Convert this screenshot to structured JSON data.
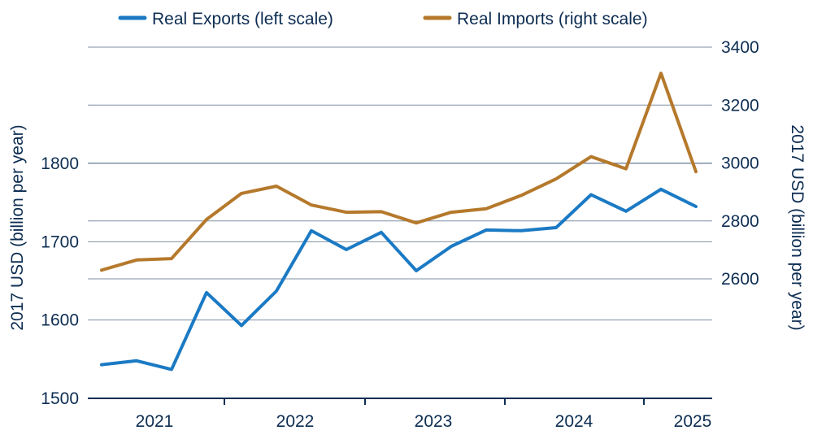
{
  "chart_data": {
    "type": "line",
    "title": "",
    "x": [
      "2020-Q4",
      "2021-Q1",
      "2021-Q2",
      "2021-Q3",
      "2021-Q4",
      "2022-Q1",
      "2022-Q2",
      "2022-Q3",
      "2022-Q4",
      "2023-Q1",
      "2023-Q2",
      "2023-Q3",
      "2023-Q4",
      "2024-Q1",
      "2024-Q2",
      "2024-Q3",
      "2024-Q4",
      "2025-Q1",
      "2025-Q2"
    ],
    "xtick_labels": [
      "2021",
      "2022",
      "2023",
      "2024",
      "2025"
    ],
    "series": [
      {
        "name": "Real Exports (left scale)",
        "axis": "left",
        "color": "#1b7ac4",
        "values": [
          1543,
          1548,
          1537,
          1635,
          1593,
          1637,
          1714,
          1690,
          1712,
          1663,
          1694,
          1715,
          1714,
          1718,
          1760,
          1739,
          1767,
          1745,
          null
        ]
      },
      {
        "name": "Real Imports (right scale)",
        "axis": "right",
        "color": "#b5792c",
        "values": [
          2630,
          2665,
          2670,
          2805,
          2895,
          2920,
          2855,
          2830,
          2832,
          2793,
          2830,
          2842,
          2888,
          2945,
          3022,
          2980,
          3310,
          2970,
          null
        ]
      }
    ],
    "left_axis": {
      "label": "2017 USD (billion per year)",
      "ticks": [
        1500,
        1600,
        1700,
        1800
      ],
      "ylim": [
        1500,
        1910
      ]
    },
    "right_axis": {
      "label": "2017 USD (billion per year)",
      "ticks": [
        2600,
        2800,
        3000,
        3200,
        3400
      ],
      "ylim": [
        2600,
        3400
      ]
    },
    "grid": true,
    "legend_position": "top"
  }
}
